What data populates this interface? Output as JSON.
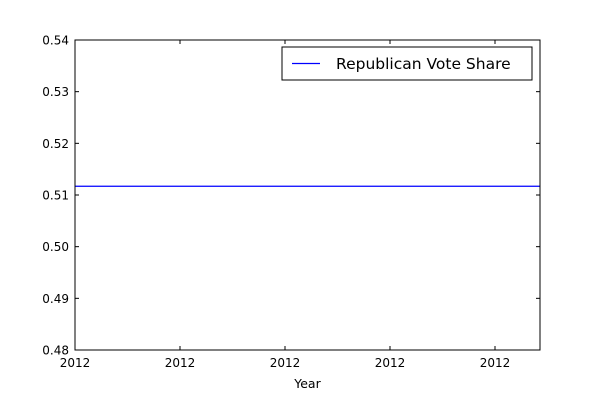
{
  "chart_data": {
    "type": "line",
    "title": "",
    "xlabel": "Year",
    "ylabel": "",
    "x_tick_labels": [
      "2012",
      "2012",
      "2012",
      "2012",
      "2012"
    ],
    "y_tick_labels": [
      "0.48",
      "0.49",
      "0.50",
      "0.51",
      "0.52",
      "0.53",
      "0.54"
    ],
    "ylim": [
      0.48,
      0.54
    ],
    "grid": false,
    "legend_position": "top-right",
    "series": [
      {
        "name": "Republican Vote Share",
        "color": "#0000ff",
        "x": [
          "2012",
          "2012"
        ],
        "values": [
          0.5117,
          0.5117
        ]
      }
    ]
  }
}
